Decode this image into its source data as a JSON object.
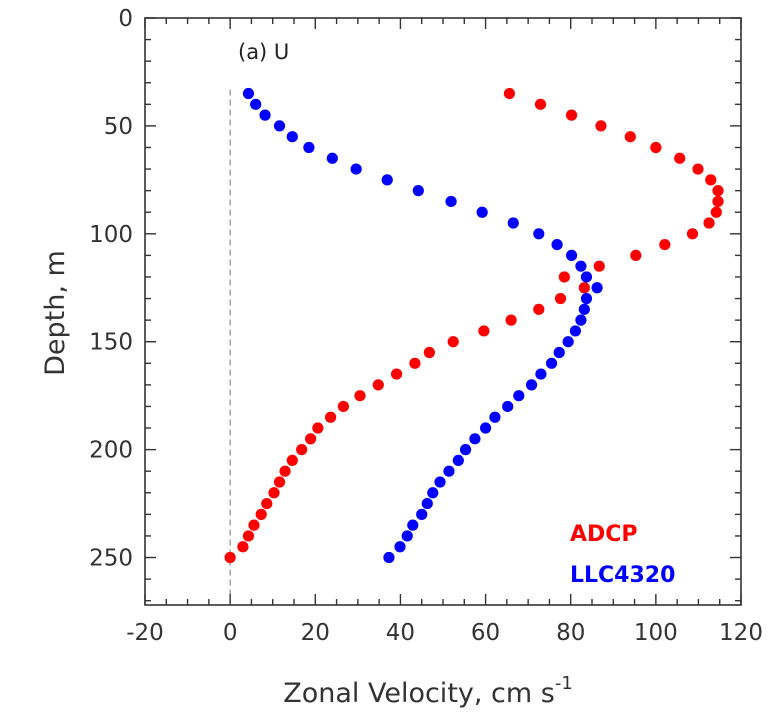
{
  "chart_data": {
    "type": "scatter",
    "panel_label": "(a) U",
    "xlabel": "Zonal Velocity, cm s",
    "xlabel_superscript": "-1",
    "ylabel": "Depth, m",
    "xlim": [
      -20,
      120
    ],
    "ylim": [
      0,
      272
    ],
    "y_inverted": true,
    "x_ticks": [
      -20,
      0,
      20,
      40,
      60,
      80,
      100,
      120
    ],
    "x_tick_labels": [
      "-20",
      "0",
      "20",
      "40",
      "60",
      "80",
      "100",
      "120"
    ],
    "y_ticks": [
      0,
      50,
      100,
      150,
      200,
      250
    ],
    "y_tick_labels": [
      "0",
      "50",
      "100",
      "150",
      "200",
      "250"
    ],
    "reference_line_x": 0,
    "grid": false,
    "legend_position": "bottom-right",
    "series": [
      {
        "name": "ADCP",
        "color": "#ff0000",
        "points": [
          [
            65.6,
            35
          ],
          [
            72.9,
            40
          ],
          [
            80.2,
            45
          ],
          [
            87.1,
            50
          ],
          [
            94.0,
            55
          ],
          [
            100.0,
            60
          ],
          [
            105.6,
            65
          ],
          [
            109.9,
            70
          ],
          [
            112.9,
            75
          ],
          [
            114.6,
            80
          ],
          [
            114.6,
            85
          ],
          [
            114.2,
            90
          ],
          [
            112.5,
            95
          ],
          [
            108.6,
            100
          ],
          [
            102.1,
            105
          ],
          [
            95.3,
            110
          ],
          [
            86.7,
            115
          ],
          [
            78.5,
            120
          ],
          [
            83.2,
            125
          ],
          [
            77.6,
            130
          ],
          [
            72.5,
            135
          ],
          [
            66.0,
            140
          ],
          [
            59.6,
            145
          ],
          [
            52.4,
            150
          ],
          [
            46.8,
            155
          ],
          [
            43.4,
            160
          ],
          [
            39.1,
            165
          ],
          [
            34.8,
            170
          ],
          [
            30.5,
            175
          ],
          [
            26.6,
            180
          ],
          [
            23.6,
            185
          ],
          [
            20.6,
            190
          ],
          [
            18.9,
            195
          ],
          [
            16.8,
            200
          ],
          [
            14.6,
            205
          ],
          [
            12.9,
            210
          ],
          [
            11.6,
            215
          ],
          [
            10.3,
            220
          ],
          [
            8.6,
            225
          ],
          [
            7.3,
            230
          ],
          [
            5.6,
            235
          ],
          [
            4.3,
            240
          ],
          [
            3.0,
            245
          ],
          [
            0.0,
            250
          ]
        ]
      },
      {
        "name": "LLC4320",
        "color": "#0000ff",
        "points": [
          [
            4.3,
            35
          ],
          [
            6.0,
            40
          ],
          [
            8.2,
            45
          ],
          [
            11.6,
            50
          ],
          [
            14.6,
            55
          ],
          [
            18.5,
            60
          ],
          [
            24.0,
            65
          ],
          [
            29.6,
            70
          ],
          [
            36.9,
            75
          ],
          [
            44.2,
            80
          ],
          [
            51.9,
            85
          ],
          [
            59.2,
            90
          ],
          [
            66.5,
            95
          ],
          [
            72.5,
            100
          ],
          [
            76.8,
            105
          ],
          [
            80.2,
            110
          ],
          [
            82.4,
            115
          ],
          [
            83.7,
            120
          ],
          [
            86.2,
            125
          ],
          [
            83.7,
            130
          ],
          [
            83.2,
            135
          ],
          [
            82.4,
            140
          ],
          [
            81.1,
            145
          ],
          [
            79.4,
            150
          ],
          [
            77.3,
            155
          ],
          [
            75.5,
            160
          ],
          [
            73.0,
            165
          ],
          [
            70.8,
            170
          ],
          [
            67.8,
            175
          ],
          [
            65.2,
            180
          ],
          [
            62.2,
            185
          ],
          [
            60.0,
            190
          ],
          [
            57.5,
            195
          ],
          [
            55.3,
            200
          ],
          [
            53.6,
            205
          ],
          [
            51.4,
            210
          ],
          [
            49.3,
            215
          ],
          [
            47.6,
            220
          ],
          [
            46.3,
            225
          ],
          [
            45.0,
            230
          ],
          [
            42.9,
            235
          ],
          [
            41.6,
            240
          ],
          [
            39.9,
            245
          ],
          [
            37.3,
            250
          ]
        ]
      }
    ]
  }
}
